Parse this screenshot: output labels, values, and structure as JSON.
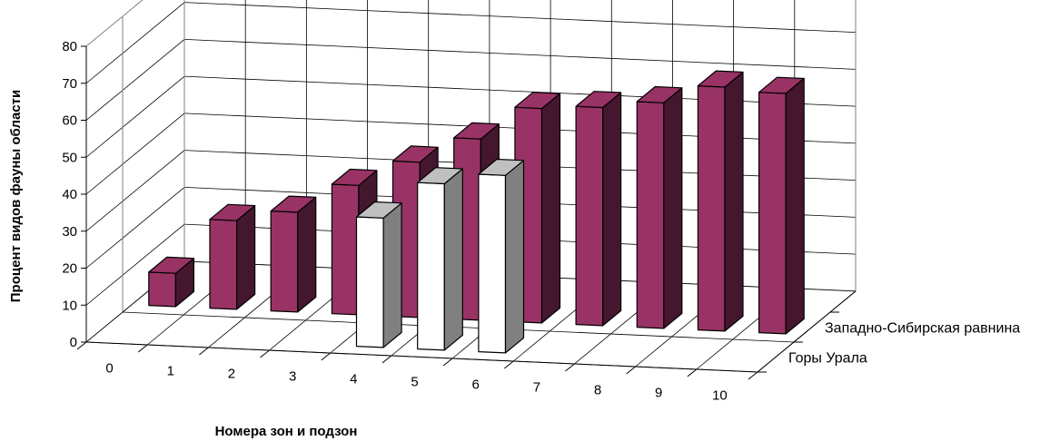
{
  "chart_data": {
    "type": "bar",
    "subtype": "3d-column",
    "title": "",
    "xlabel": "Номера зон и подзон",
    "ylabel": "Процент видов фауны области",
    "ylim": [
      0,
      80
    ],
    "yticks": [
      "0",
      "10",
      "20",
      "30",
      "40",
      "50",
      "60",
      "70",
      "80"
    ],
    "categories": [
      "0",
      "1",
      "2",
      "3",
      "4",
      "5",
      "6",
      "7",
      "8",
      "9",
      "10"
    ],
    "series": [
      {
        "name": "Западно-Сибирская равнина",
        "color": "#993366",
        "values": [
          9,
          24,
          27,
          35,
          42,
          49,
          58,
          59,
          61,
          66,
          65
        ]
      },
      {
        "name": "Горы Урала",
        "color": "#ffffff",
        "values": [
          null,
          null,
          null,
          null,
          35,
          45,
          48,
          null,
          null,
          null,
          null
        ]
      }
    ],
    "grid": true
  }
}
